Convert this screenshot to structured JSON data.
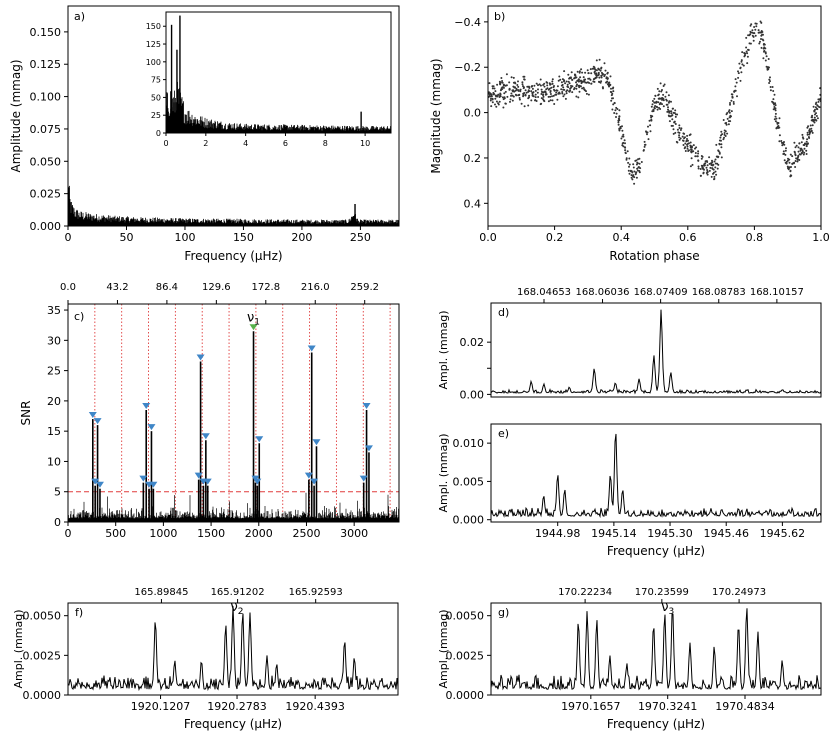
{
  "figure": {
    "font": "sans"
  },
  "chart_data": [
    {
      "panel": "a",
      "type": "line",
      "label": "a)",
      "xlabel": "Frequency (μHz)",
      "ylabel": "Amplitude (mmag)",
      "xlim": [
        0,
        283
      ],
      "ylim": [
        0,
        0.17
      ],
      "xticks": [
        0,
        50,
        100,
        150,
        200,
        250
      ],
      "yticks": [
        0.0,
        0.025,
        0.05,
        0.075,
        0.1,
        0.125,
        0.15
      ],
      "ytick_labels": [
        "0.000",
        "0.025",
        "0.050",
        "0.075",
        "0.100",
        "0.125",
        "0.150"
      ],
      "envelope": {
        "x": [
          0,
          0.3,
          0.6,
          1,
          1.5,
          2,
          3,
          4,
          5,
          7,
          10,
          15,
          20,
          30,
          40,
          60,
          80,
          100,
          150,
          200,
          240,
          244,
          245,
          246,
          248,
          260,
          283
        ],
        "y": [
          0.05,
          0.063,
          0.045,
          0.035,
          0.028,
          0.024,
          0.02,
          0.018,
          0.016,
          0.014,
          0.012,
          0.011,
          0.01,
          0.009,
          0.008,
          0.007,
          0.0065,
          0.006,
          0.0055,
          0.005,
          0.005,
          0.012,
          0.017,
          0.01,
          0.005,
          0.005,
          0.005
        ]
      },
      "peaks": [
        {
          "x": 245.4,
          "y": 0.017
        }
      ],
      "inset": {
        "xlim": [
          0,
          11.3
        ],
        "ylim": [
          0,
          170
        ],
        "xticks": [
          0,
          2,
          4,
          6,
          8,
          10
        ],
        "yticks": [
          0,
          25,
          50,
          75,
          100,
          125,
          150
        ],
        "peaks": [
          {
            "x": 0.28,
            "y": 152
          },
          {
            "x": 0.55,
            "y": 117
          },
          {
            "x": 0.7,
            "y": 165
          },
          {
            "x": 9.8,
            "y": 30
          }
        ],
        "envelope": {
          "x": [
            0,
            0.2,
            0.4,
            0.6,
            0.8,
            1,
            1.5,
            2,
            3,
            4,
            6,
            8,
            10,
            11.3
          ],
          "y": [
            55,
            70,
            60,
            75,
            55,
            38,
            28,
            22,
            16,
            13,
            12,
            11,
            10,
            10
          ]
        }
      }
    },
    {
      "panel": "b",
      "type": "scatter",
      "label": "b)",
      "xlabel": "Rotation phase",
      "ylabel": "Magnitude (mmag)",
      "xlim": [
        0,
        1
      ],
      "ylim": [
        0.5,
        -0.47
      ],
      "y_inverted": true,
      "xticks": [
        0.0,
        0.2,
        0.4,
        0.6,
        0.8,
        1.0
      ],
      "xtick_labels": [
        "0.0",
        "0.2",
        "0.4",
        "0.6",
        "0.8",
        "1.0"
      ],
      "yticks": [
        -0.4,
        -0.2,
        0.0,
        0.2,
        0.4
      ],
      "ytick_labels": [
        "−0.4",
        "−0.2",
        "0.0",
        "0.2",
        "0.4"
      ],
      "trend": {
        "phase": [
          0.0,
          0.05,
          0.1,
          0.15,
          0.2,
          0.25,
          0.3,
          0.33,
          0.36,
          0.4,
          0.43,
          0.46,
          0.5,
          0.53,
          0.56,
          0.6,
          0.64,
          0.68,
          0.72,
          0.76,
          0.8,
          0.83,
          0.86,
          0.9,
          0.95,
          1.0
        ],
        "mag": [
          -0.07,
          -0.1,
          -0.1,
          -0.08,
          -0.1,
          -0.13,
          -0.14,
          -0.18,
          -0.15,
          0.08,
          0.28,
          0.22,
          -0.05,
          -0.08,
          0.05,
          0.15,
          0.23,
          0.25,
          0.02,
          -0.2,
          -0.38,
          -0.3,
          -0.02,
          0.24,
          0.15,
          -0.07
        ]
      },
      "scatter_sigma": 0.035
    },
    {
      "panel": "c",
      "type": "bar",
      "label": "c)",
      "ylabel": "SNR",
      "xlim": [
        0,
        3470
      ],
      "ylim": [
        0,
        36
      ],
      "xticks": [
        0,
        500,
        1000,
        1500,
        2000,
        2500,
        3000
      ],
      "yticks": [
        0,
        5,
        10,
        15,
        20,
        25,
        30,
        35
      ],
      "top_axis": {
        "ticks": [
          0.0,
          43.2,
          86.4,
          129.6,
          172.8,
          216.0,
          259.2
        ],
        "tick_labels": [
          "0.0",
          "43.2",
          "86.4",
          "129.6",
          "172.8",
          "216.0",
          "259.2"
        ]
      },
      "threshold": 5,
      "dotted_lines_x": [
        281.4,
        562.8,
        844.2,
        1125.6,
        1407.0,
        1688.4,
        1969.8,
        2251.2,
        2532.6,
        2814.0,
        3095.4,
        3376.8
      ],
      "peaks": [
        {
          "x": 260,
          "snr": 17
        },
        {
          "x": 285,
          "snr": 6
        },
        {
          "x": 310,
          "snr": 16
        },
        {
          "x": 335,
          "snr": 5.5
        },
        {
          "x": 790,
          "snr": 6.5
        },
        {
          "x": 820,
          "snr": 18.5
        },
        {
          "x": 850,
          "snr": 5.5
        },
        {
          "x": 875,
          "snr": 15
        },
        {
          "x": 895,
          "snr": 5.5
        },
        {
          "x": 1370,
          "snr": 7
        },
        {
          "x": 1390,
          "snr": 26.5
        },
        {
          "x": 1420,
          "snr": 6
        },
        {
          "x": 1445,
          "snr": 13.5
        },
        {
          "x": 1465,
          "snr": 6
        },
        {
          "x": 1945,
          "snr": 31.5
        },
        {
          "x": 1965,
          "snr": 6.5
        },
        {
          "x": 1985,
          "snr": 6
        },
        {
          "x": 2005,
          "snr": 13
        },
        {
          "x": 2525,
          "snr": 7
        },
        {
          "x": 2555,
          "snr": 28
        },
        {
          "x": 2580,
          "snr": 6
        },
        {
          "x": 2605,
          "snr": 12.5
        },
        {
          "x": 3100,
          "snr": 6.5
        },
        {
          "x": 3130,
          "snr": 18.5
        },
        {
          "x": 3155,
          "snr": 11.5
        }
      ],
      "marker_colors": {
        "primary": "#e03c3c",
        "marker": "#3f86c7",
        "highlight": "#58b04a"
      },
      "annotation": {
        "text": "ν",
        "sub": "1",
        "x": 1945
      }
    },
    {
      "panel": "d",
      "type": "line",
      "label": "d)",
      "ylabel": "Ampl. (mmag)",
      "xlim": [
        168.034,
        168.112
      ],
      "ylim": [
        -0.001,
        0.035
      ],
      "yticks": [
        0.0,
        0.01,
        0.02
      ],
      "ytick_labels": [
        "0.00",
        "",
        "0.02"
      ],
      "top_axis": {
        "ticks": [
          168.04653,
          168.06036,
          168.07409,
          168.08783,
          168.10157
        ],
        "tick_labels": [
          "168.04653",
          "168.06036",
          "168.07409",
          "168.08783",
          "168.10157"
        ]
      },
      "peaks": [
        {
          "x": 168.0435,
          "y": 0.005
        },
        {
          "x": 168.0465,
          "y": 0.004
        },
        {
          "x": 168.0525,
          "y": 0.0028
        },
        {
          "x": 168.0584,
          "y": 0.01
        },
        {
          "x": 168.0634,
          "y": 0.0045
        },
        {
          "x": 168.069,
          "y": 0.006
        },
        {
          "x": 168.0725,
          "y": 0.015
        },
        {
          "x": 168.0742,
          "y": 0.0325
        },
        {
          "x": 168.0765,
          "y": 0.0085
        }
      ],
      "noise": 0.0013
    },
    {
      "panel": "e",
      "type": "line",
      "label": "e)",
      "xlabel": "Frequency (μHz)",
      "ylabel": "Ampl. (mmag)",
      "xlim": [
        1944.79,
        1945.73
      ],
      "ylim": [
        -0.0003,
        0.0125
      ],
      "xticks": [
        1944.98,
        1945.14,
        1945.3,
        1945.46,
        1945.62
      ],
      "xtick_labels": [
        "1944.98",
        "1945.14",
        "1945.30",
        "1945.46",
        "1945.62"
      ],
      "yticks": [
        0.0,
        0.005,
        0.01
      ],
      "ytick_labels": [
        "0.000",
        "0.005",
        "0.010"
      ],
      "peaks": [
        {
          "x": 1944.94,
          "y": 0.0032
        },
        {
          "x": 1944.98,
          "y": 0.006
        },
        {
          "x": 1945.0,
          "y": 0.004
        },
        {
          "x": 1945.13,
          "y": 0.006
        },
        {
          "x": 1945.145,
          "y": 0.0118
        },
        {
          "x": 1945.165,
          "y": 0.004
        }
      ],
      "noise": 0.0011
    },
    {
      "panel": "f",
      "type": "line",
      "label": "f)",
      "xlabel": "Frequency (μHz)",
      "ylabel": "Ampl. (mmag)",
      "xlim": [
        1919.93,
        1920.61
      ],
      "ylim": [
        0,
        0.0058
      ],
      "xticks": [
        1920.1207,
        1920.2783,
        1920.4393
      ],
      "xtick_labels": [
        "1920.1207",
        "1920.2783",
        "1920.4393"
      ],
      "yticks": [
        0.0,
        0.0025,
        0.005
      ],
      "ytick_labels": [
        "0.0000",
        "0.0025",
        "0.0050"
      ],
      "top_axis": {
        "ticks": [
          165.89845,
          165.91202,
          165.92593
        ],
        "tick_labels": [
          "165.89845",
          "165.91202",
          "165.92593"
        ]
      },
      "annotation": {
        "text": "ν",
        "sub": "2",
        "x": 1920.2783
      },
      "peaks": [
        {
          "x": 1920.11,
          "y": 0.0048
        },
        {
          "x": 1920.15,
          "y": 0.0022
        },
        {
          "x": 1920.205,
          "y": 0.0022
        },
        {
          "x": 1920.255,
          "y": 0.0045
        },
        {
          "x": 1920.27,
          "y": 0.0056
        },
        {
          "x": 1920.29,
          "y": 0.0053
        },
        {
          "x": 1920.305,
          "y": 0.0052
        },
        {
          "x": 1920.34,
          "y": 0.0025
        },
        {
          "x": 1920.36,
          "y": 0.002
        },
        {
          "x": 1920.5,
          "y": 0.0035
        },
        {
          "x": 1920.52,
          "y": 0.0024
        }
      ],
      "noise": 0.0009
    },
    {
      "panel": "g",
      "type": "line",
      "label": "g)",
      "xlabel": "Frequency (μHz)",
      "ylabel": "Ampl. (mmag)",
      "xlim": [
        1969.96,
        1970.64
      ],
      "ylim": [
        0,
        0.0058
      ],
      "xticks": [
        1970.1657,
        1970.3241,
        1970.4834
      ],
      "xtick_labels": [
        "1970.1657",
        "1970.3241",
        "1970.4834"
      ],
      "yticks": [
        0.0,
        0.0025,
        0.005
      ],
      "ytick_labels": [
        "0.0000",
        "0.0025",
        "0.0050"
      ],
      "top_axis": {
        "ticks": [
          170.22234,
          170.23599,
          170.24973
        ],
        "tick_labels": [
          "170.22234",
          "170.23599",
          "170.24973"
        ]
      },
      "annotation": {
        "text": "ν",
        "sub": "3",
        "x": 1970.3241
      },
      "peaks": [
        {
          "x": 1970.14,
          "y": 0.0047
        },
        {
          "x": 1970.158,
          "y": 0.0053
        },
        {
          "x": 1970.178,
          "y": 0.0048
        },
        {
          "x": 1970.205,
          "y": 0.0025
        },
        {
          "x": 1970.24,
          "y": 0.002
        },
        {
          "x": 1970.295,
          "y": 0.0045
        },
        {
          "x": 1970.318,
          "y": 0.0052
        },
        {
          "x": 1970.334,
          "y": 0.0056
        },
        {
          "x": 1970.37,
          "y": 0.0033
        },
        {
          "x": 1970.42,
          "y": 0.0031
        },
        {
          "x": 1970.47,
          "y": 0.0045
        },
        {
          "x": 1970.487,
          "y": 0.0056
        },
        {
          "x": 1970.51,
          "y": 0.004
        },
        {
          "x": 1970.56,
          "y": 0.0022
        }
      ],
      "noise": 0.0009
    }
  ]
}
